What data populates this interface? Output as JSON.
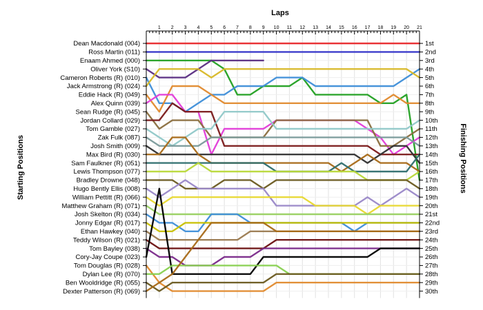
{
  "chart_data": {
    "type": "line",
    "title": "Laps",
    "ylabel_left": "Starting Positions",
    "ylabel_right": "Finishing Positions",
    "laps": [
      "1",
      "2",
      "3",
      "4",
      "5",
      "6",
      "7",
      "8",
      "9",
      "10",
      "11",
      "12",
      "13",
      "14",
      "15",
      "16",
      "17",
      "18",
      "19",
      "20",
      "21"
    ],
    "drivers": [
      "Dean Macdonald (004)",
      "Ross Martin (011)",
      "Enaam Ahmed (000)",
      "Oliver York (S10)",
      "Cameron Roberts (R) (010)",
      "Jack Armstrong (R) (024)",
      "Eddie Hack (R) (049)",
      "Alex Quinn (039)",
      "Sean Rudge (R) (045)",
      "Jordan Collard (029)",
      "Tom Gamble (027)",
      "Zak Fulk (087)",
      "Josh Smith (009)",
      "Max Bird (R) (030)",
      "Sam Faulkner (R) (051)",
      "Lewis Thompson (077)",
      "Bradley Drowne (048)",
      "Hugo Bently Ellis (008)",
      "William Pettitt (R) (066)",
      "Matthew Graham (R) (071)",
      "Josh Skelton (R) (034)",
      "Jonny Edgar (R) (017)",
      "Ethan Hawkey (040)",
      "Teddy Wilson (R) (021)",
      "Tom Bayley (038)",
      "Cory-Jay Coupe (023)",
      "Tom Douglas (R) (028)",
      "Dylan Lee (R) (070)",
      "Ben Wooldridge (R) (055)",
      "Dexter Patterson (R) (069)"
    ],
    "finishing": [
      "1st",
      "2nd",
      "3rd",
      "4th",
      "5th",
      "6th",
      "7th",
      "8th",
      "9th",
      "10th",
      "11th",
      "12th",
      "13th",
      "14th",
      "15th",
      "16th",
      "17th",
      "18th",
      "19th",
      "20th",
      "21st",
      "22nd",
      "23rd",
      "24th",
      "25th",
      "26th",
      "27th",
      "28th",
      "29th",
      "30th"
    ],
    "series": [
      {
        "color": "#e8282b",
        "positions": [
          1,
          1,
          1,
          1,
          1,
          1,
          1,
          1,
          1,
          1,
          1,
          1,
          1,
          1,
          1,
          1,
          1,
          1,
          1,
          1,
          1,
          1
        ]
      },
      {
        "color": "#3030c8",
        "positions": [
          2,
          2,
          2,
          2,
          2,
          2,
          2,
          2,
          2,
          2,
          2,
          2,
          2,
          2,
          2,
          2,
          2,
          2,
          2,
          2,
          2,
          2
        ]
      },
      {
        "color": "#22a022",
        "positions": [
          3,
          3,
          3,
          3,
          3,
          3,
          4,
          7,
          7,
          6,
          6,
          6,
          5,
          7,
          7,
          7,
          7,
          7,
          8,
          8,
          7,
          17
        ]
      },
      {
        "color": "#5a2d82",
        "positions": [
          4,
          5,
          5,
          5,
          4,
          3,
          3,
          3,
          3,
          3
        ]
      },
      {
        "color": "#3e8ed8",
        "positions": [
          5,
          8,
          8,
          9,
          8,
          7,
          7,
          6,
          6,
          6,
          5,
          5,
          5,
          6,
          6,
          6,
          6,
          6,
          6,
          6,
          5,
          4
        ]
      },
      {
        "color": "#d8b828",
        "positions": [
          6,
          4,
          4,
          4,
          4,
          5,
          4,
          4,
          4,
          4,
          4,
          4,
          4,
          4,
          4,
          4,
          4,
          4,
          4,
          4,
          4,
          5
        ]
      },
      {
        "color": "#e08a2e",
        "positions": [
          7,
          9,
          6,
          6,
          6,
          7,
          8,
          8,
          8,
          8,
          8,
          8,
          8,
          8,
          8,
          8,
          8,
          8,
          8,
          7,
          8,
          8
        ]
      },
      {
        "color": "#e23cd8",
        "positions": [
          8,
          7,
          7,
          9,
          9,
          14,
          11,
          11,
          11,
          11,
          10,
          10,
          10,
          10,
          10,
          10,
          10,
          11,
          12,
          14,
          13,
          12
        ]
      },
      {
        "color": "#8a6e3e",
        "positions": [
          9,
          11,
          10,
          10,
          10,
          12,
          12,
          12,
          12,
          12,
          10,
          10,
          10,
          10,
          10,
          10,
          10,
          10,
          13,
          13,
          12,
          11
        ]
      },
      {
        "color": "#7a1a1a",
        "positions": [
          10,
          10,
          8,
          9,
          9,
          9,
          13,
          13,
          13,
          13,
          13,
          13,
          13,
          13,
          13,
          13,
          13,
          13,
          14,
          14,
          14,
          14
        ]
      },
      {
        "color": "#90c8c8",
        "positions": [
          11,
          12,
          13,
          12,
          11,
          11,
          9,
          9,
          9,
          9,
          11,
          11,
          11,
          11,
          11,
          11,
          11,
          11,
          11,
          11,
          11,
          10
        ]
      },
      {
        "color": "#7a9a9a",
        "positions": [
          12,
          13,
          13,
          13,
          13,
          12,
          12,
          12,
          12,
          12,
          12,
          12,
          12,
          12,
          12,
          12,
          12,
          12,
          12,
          12,
          12,
          13
        ]
      },
      {
        "color": "#303030",
        "positions": [
          13,
          14,
          14,
          14,
          14,
          14,
          14,
          14,
          14,
          14,
          14,
          14,
          14,
          14,
          14,
          14,
          14,
          15,
          14,
          13,
          13,
          15
        ]
      },
      {
        "color": "#a86a18",
        "positions": [
          14,
          14,
          12,
          12,
          14,
          15,
          15,
          15,
          15,
          15,
          15,
          15,
          15,
          15,
          15,
          16,
          15,
          14,
          15,
          15,
          15,
          16
        ]
      },
      {
        "color": "#2e6e6e",
        "positions": [
          15,
          15,
          15,
          15,
          15,
          15,
          15,
          15,
          15,
          15,
          16,
          16,
          16,
          16,
          16,
          15,
          16,
          16,
          16,
          16,
          16,
          14
        ]
      },
      {
        "color": "#b8d838",
        "positions": [
          16,
          16,
          16,
          16,
          15,
          16,
          16,
          16,
          16,
          16,
          16,
          16,
          16,
          16,
          16,
          16,
          16,
          17,
          17,
          17,
          17,
          16
        ]
      },
      {
        "color": "#6a5a20",
        "positions": [
          17,
          17,
          17,
          18,
          18,
          18,
          17,
          17,
          17,
          18,
          17,
          17,
          17,
          17,
          17,
          17,
          17,
          17,
          17,
          17,
          17,
          18
        ]
      },
      {
        "color": "#9a88c8",
        "positions": [
          18,
          19,
          18,
          17,
          18,
          18,
          18,
          18,
          18,
          18,
          20,
          20,
          20,
          20,
          20,
          20,
          20,
          19,
          20,
          19,
          18,
          19
        ]
      },
      {
        "color": "#e8d830",
        "positions": [
          19,
          20,
          19,
          19,
          19,
          19,
          19,
          19,
          19,
          19,
          19,
          19,
          19,
          20,
          20,
          20,
          20,
          21,
          20,
          20,
          20,
          20
        ]
      },
      {
        "color": "#98d060",
        "positions": [
          20,
          21,
          21,
          21,
          21,
          21,
          21,
          21,
          21,
          21,
          21,
          21,
          21,
          21,
          21,
          21,
          21,
          21,
          21,
          21,
          21,
          21
        ]
      },
      {
        "color": "#3e8ed8",
        "positions": [
          21,
          22,
          22,
          23,
          23,
          21,
          21,
          21,
          22,
          22,
          22,
          22,
          22,
          22,
          22,
          22,
          23,
          22,
          22,
          22,
          22,
          22
        ]
      },
      {
        "color": "#c8c000",
        "positions": [
          22,
          23,
          23,
          22,
          22,
          22,
          22,
          22,
          22,
          22,
          22,
          22,
          22,
          22,
          22,
          22,
          22,
          22,
          22,
          22,
          22,
          22
        ]
      },
      {
        "color": "#9a7a50",
        "positions": [
          23,
          24,
          24,
          24,
          24,
          24,
          24,
          24,
          23,
          23,
          23,
          23,
          23,
          23,
          23,
          23,
          23,
          23,
          23,
          23,
          23,
          23
        ]
      },
      {
        "color": "#6a1010",
        "positions": [
          24,
          25,
          25,
          25,
          25,
          25,
          25,
          25,
          25,
          25,
          24,
          24,
          24,
          24,
          24,
          24,
          24,
          24,
          24,
          24,
          24,
          24
        ]
      },
      {
        "color": "#7a2a8a",
        "positions": [
          25,
          26,
          26,
          27,
          27,
          27,
          26,
          26,
          26,
          25,
          25,
          25,
          25,
          25,
          25,
          25,
          25,
          25,
          25,
          25,
          25,
          25
        ]
      },
      {
        "color": "#000000",
        "positions": [
          26,
          18,
          28,
          28,
          28,
          28,
          28,
          28,
          28,
          26,
          26,
          26,
          26,
          26,
          26,
          26,
          26,
          26,
          25,
          25,
          25,
          25
        ]
      },
      {
        "color": "#e08a2e",
        "positions": [
          27,
          29,
          30,
          30,
          30,
          30,
          30,
          30,
          30,
          30,
          29,
          29,
          29,
          29,
          29,
          29,
          29,
          29,
          29,
          29,
          29,
          29
        ]
      },
      {
        "color": "#88d050",
        "positions": [
          28,
          28,
          27,
          27,
          27,
          27,
          27,
          27,
          27,
          27,
          27,
          28,
          28,
          28,
          28,
          28,
          28,
          28,
          28,
          28,
          28,
          28
        ]
      },
      {
        "color": "#6a5a20",
        "positions": [
          29,
          30,
          29,
          29,
          29,
          29,
          29,
          29,
          29,
          29,
          28,
          28,
          28,
          28,
          28,
          28,
          28,
          28,
          28,
          28,
          28,
          28
        ]
      },
      {
        "color": "#a86a18",
        "positions": [
          30,
          29,
          28,
          26,
          24,
          22,
          22,
          22,
          22,
          22,
          23,
          23,
          23,
          23,
          23,
          23,
          23,
          23,
          23,
          23,
          23,
          23
        ]
      }
    ]
  }
}
